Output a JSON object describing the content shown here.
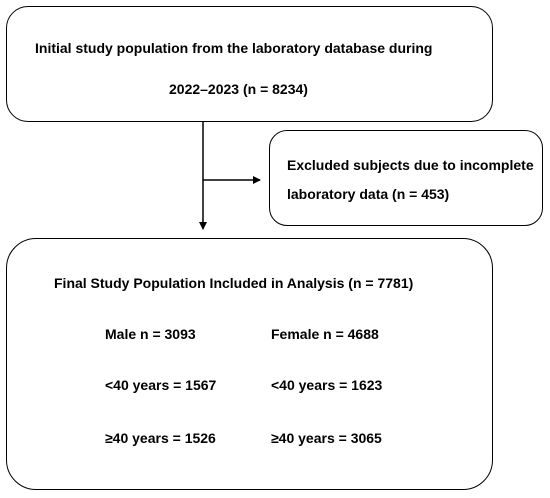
{
  "initial": {
    "line1": "Initial study population from the laboratory database during",
    "line2": "2022–2023 (n = 8234)"
  },
  "excluded": {
    "line1": "Excluded subjects due to incomplete",
    "line2": "laboratory data (n = 453)"
  },
  "final": {
    "title": "Final Study Population Included in Analysis (n = 7781)",
    "male": {
      "total": "Male n = 3093",
      "under40": "<40 years = 1567",
      "over40": "≥40 years = 1526"
    },
    "female": {
      "total": "Female n = 4688",
      "under40": "<40 years = 1623",
      "over40": "≥40 years = 3065"
    }
  }
}
